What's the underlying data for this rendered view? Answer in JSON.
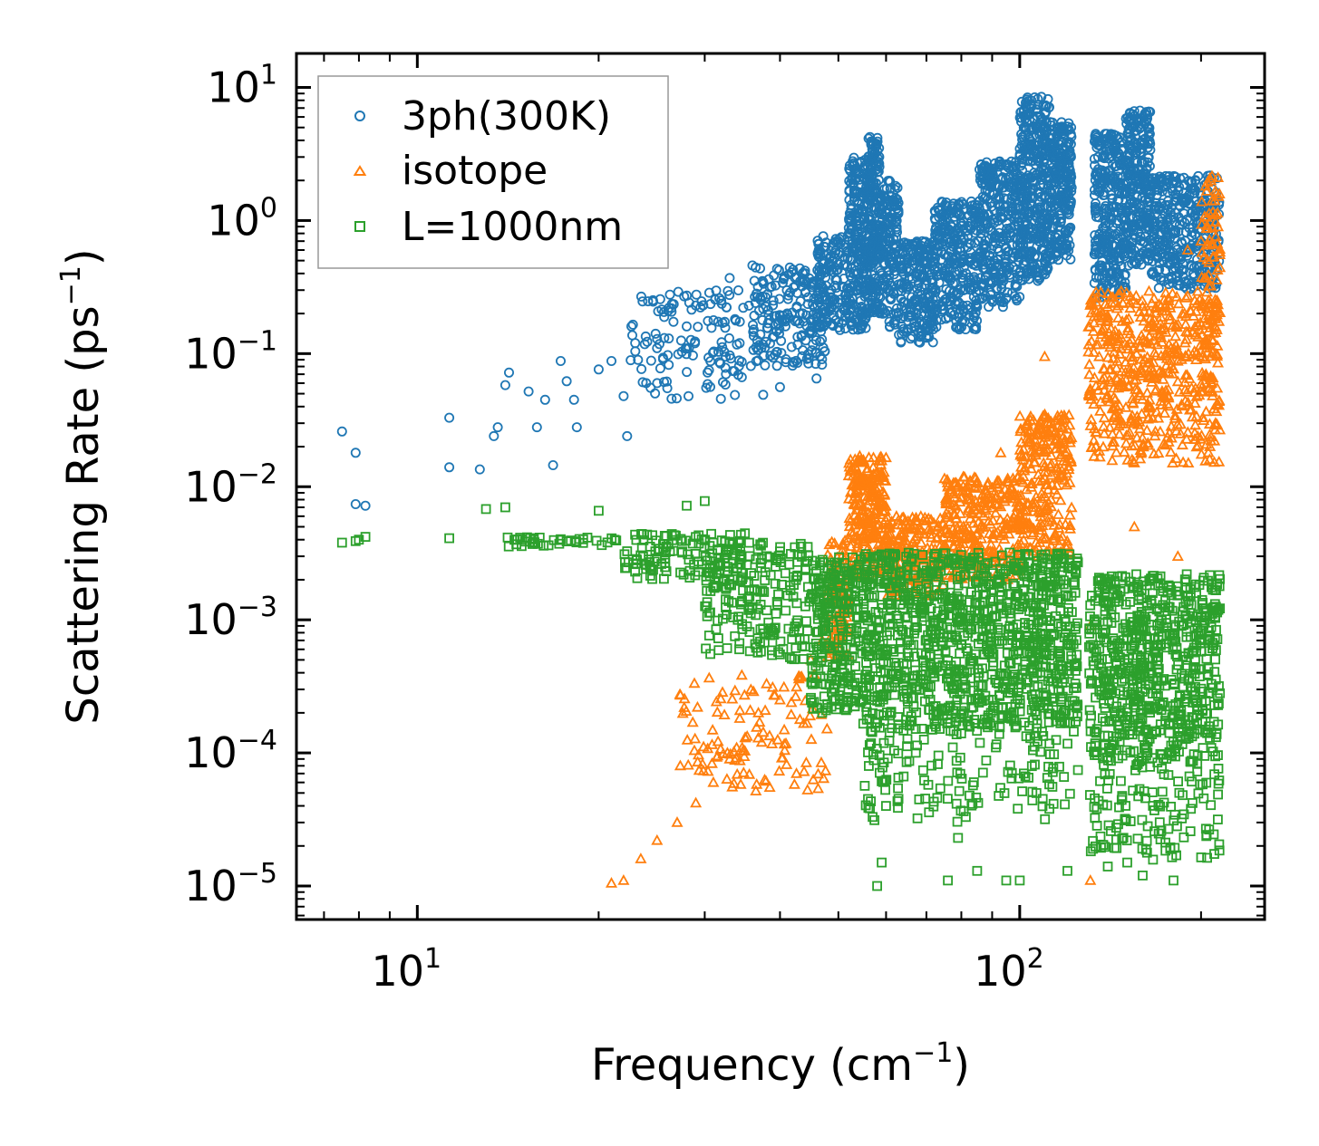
{
  "chart_data": {
    "type": "scatter",
    "xscale": "log",
    "yscale": "log",
    "xlim": [
      6.3,
      255
    ],
    "ylim": [
      5.6e-06,
      18
    ],
    "xlabel": {
      "base": "Frequency (cm",
      "sup": "−1",
      "close": ")"
    },
    "ylabel": {
      "base": "Scattering Rate (ps",
      "sup": "−1",
      "close": ")"
    },
    "x_ticks": [
      {
        "base": "10",
        "exp": "1",
        "value": 10
      },
      {
        "base": "10",
        "exp": "2",
        "value": 100
      }
    ],
    "y_ticks": [
      {
        "base": "10",
        "exp": "1",
        "value": 10
      },
      {
        "base": "10",
        "exp": "0",
        "value": 1
      },
      {
        "base": "10",
        "exp": "−1",
        "value": 0.1
      },
      {
        "base": "10",
        "exp": "−2",
        "value": 0.01
      },
      {
        "base": "10",
        "exp": "−3",
        "value": 0.001
      },
      {
        "base": "10",
        "exp": "−4",
        "value": 0.0001
      },
      {
        "base": "10",
        "exp": "−5",
        "value": 1e-05
      }
    ],
    "legend_position": "top-left",
    "series": [
      {
        "name": "3ph(300K)",
        "color": "#1f77b4",
        "marker": "circle",
        "points": [
          [
            7.5,
            0.026
          ],
          [
            7.9,
            0.018
          ],
          [
            7.9,
            0.0074
          ],
          [
            8.2,
            0.0072
          ],
          [
            11.3,
            0.033
          ],
          [
            11.3,
            0.014
          ],
          [
            12.7,
            0.0135
          ],
          [
            13.4,
            0.024
          ],
          [
            13.6,
            0.028
          ],
          [
            14.0,
            0.058
          ],
          [
            14.2,
            0.072
          ],
          [
            15.3,
            0.052
          ],
          [
            15.8,
            0.028
          ],
          [
            16.3,
            0.045
          ],
          [
            16.8,
            0.0145
          ],
          [
            17.3,
            0.088
          ],
          [
            17.7,
            0.062
          ],
          [
            18.2,
            0.045
          ],
          [
            18.4,
            0.028
          ],
          [
            20.0,
            0.076
          ],
          [
            21.0,
            0.088
          ],
          [
            22.0,
            0.048
          ],
          [
            22.3,
            0.024
          ],
          [
            23.0,
            0.12
          ],
          [
            25.0,
            0.11
          ],
          [
            26.0,
            0.055
          ],
          [
            28.0,
            0.16
          ],
          [
            29.0,
            0.23
          ],
          [
            33.0,
            0.37
          ],
          [
            36.0,
            0.46
          ],
          [
            40.0,
            0.056
          ],
          [
            46.0,
            0.065
          ]
        ],
        "bands": [
          {
            "x0": 22.5,
            "x1": 38,
            "ylo": 0.045,
            "yhi": 0.3,
            "n": 140
          },
          {
            "x0": 36,
            "x1": 48,
            "ylo": 0.08,
            "yhi": 0.45,
            "n": 200
          },
          {
            "x0": 46,
            "x1": 52,
            "ylo": 0.15,
            "yhi": 0.8,
            "n": 130
          },
          {
            "x0": 52,
            "x1": 56,
            "ylo": 0.15,
            "yhi": 3.0,
            "n": 240
          },
          {
            "x0": 56,
            "x1": 58.5,
            "ylo": 0.2,
            "yhi": 4.3,
            "n": 180
          },
          {
            "x0": 58.5,
            "x1": 63,
            "ylo": 0.15,
            "yhi": 2.0,
            "n": 160
          },
          {
            "x0": 63,
            "x1": 72,
            "ylo": 0.12,
            "yhi": 0.7,
            "n": 220
          },
          {
            "x0": 72,
            "x1": 85,
            "ylo": 0.15,
            "yhi": 1.4,
            "n": 280
          },
          {
            "x0": 85,
            "x1": 100,
            "ylo": 0.22,
            "yhi": 2.8,
            "n": 320
          },
          {
            "x0": 100,
            "x1": 112,
            "ylo": 0.35,
            "yhi": 8.5,
            "n": 360
          },
          {
            "x0": 112,
            "x1": 122,
            "ylo": 0.5,
            "yhi": 5.5,
            "n": 240
          },
          {
            "x0": 133,
            "x1": 150,
            "ylo": 0.26,
            "yhi": 4.5,
            "n": 300
          },
          {
            "x0": 150,
            "x1": 165,
            "ylo": 0.45,
            "yhi": 6.8,
            "n": 260
          },
          {
            "x0": 165,
            "x1": 215,
            "ylo": 0.3,
            "yhi": 2.2,
            "n": 360
          }
        ]
      },
      {
        "name": "isotope",
        "color": "#ff7f0e",
        "marker": "triangle",
        "points": [
          [
            21.0,
            1.05e-05
          ],
          [
            22.0,
            1.1e-05
          ],
          [
            23.5,
            1.6e-05
          ],
          [
            25.0,
            2.2e-05
          ],
          [
            27.0,
            3e-05
          ],
          [
            29.0,
            4.2e-05
          ],
          [
            31.0,
            6e-05
          ],
          [
            33.0,
            9e-05
          ],
          [
            35.0,
            0.00013
          ],
          [
            37.0,
            0.00017
          ],
          [
            40.0,
            0.00025
          ],
          [
            43.0,
            0.00036
          ],
          [
            45.0,
            0.0005
          ],
          [
            47.0,
            0.0007
          ],
          [
            110,
            0.095
          ],
          [
            93,
            0.018
          ],
          [
            131,
            1.1e-05
          ],
          [
            131,
            0.0009
          ],
          [
            155,
            0.005
          ],
          [
            183,
            0.003
          ],
          [
            190,
            0.6
          ],
          [
            200,
            0.7
          ]
        ],
        "bands": [
          {
            "x0": 27,
            "x1": 48,
            "ylo": 5e-05,
            "yhi": 0.0004,
            "n": 120
          },
          {
            "x0": 48,
            "x1": 52,
            "ylo": 0.0005,
            "yhi": 0.004,
            "n": 100
          },
          {
            "x0": 52,
            "x1": 60,
            "ylo": 0.002,
            "yhi": 0.017,
            "n": 260
          },
          {
            "x0": 60,
            "x1": 75,
            "ylo": 0.0015,
            "yhi": 0.006,
            "n": 200
          },
          {
            "x0": 75,
            "x1": 100,
            "ylo": 0.002,
            "yhi": 0.012,
            "n": 300
          },
          {
            "x0": 100,
            "x1": 122,
            "ylo": 0.003,
            "yhi": 0.035,
            "n": 260
          },
          {
            "x0": 130,
            "x1": 215,
            "ylo": 0.015,
            "yhi": 0.3,
            "n": 560
          },
          {
            "x0": 200,
            "x1": 215,
            "ylo": 0.1,
            "yhi": 2.3,
            "n": 80
          }
        ]
      },
      {
        "name": "L=1000nm",
        "color": "#2ca02c",
        "marker": "square",
        "points": [
          [
            7.5,
            0.0038
          ],
          [
            7.9,
            0.0039
          ],
          [
            8.0,
            0.004
          ],
          [
            8.2,
            0.0042
          ],
          [
            11.3,
            0.0041
          ],
          [
            13.0,
            0.0068
          ],
          [
            14.0,
            0.007
          ],
          [
            20.0,
            0.0066
          ],
          [
            28.0,
            0.0072
          ],
          [
            30.0,
            0.0078
          ],
          [
            40.0,
            0.00055
          ],
          [
            45.0,
            0.00025
          ],
          [
            47.0,
            0.0002
          ],
          [
            56.0,
            4.5e-05
          ],
          [
            57.0,
            3.3e-05
          ],
          [
            58.0,
            1e-05
          ],
          [
            59.0,
            1.5e-05
          ],
          [
            60.0,
            4e-05
          ],
          [
            76.0,
            1.1e-05
          ],
          [
            79.0,
            2.3e-05
          ],
          [
            85.0,
            1.3e-05
          ],
          [
            95.0,
            1.1e-05
          ],
          [
            100.0,
            1.1e-05
          ],
          [
            112.0,
            3.8e-05
          ],
          [
            120.0,
            1.3e-05
          ],
          [
            140.0,
            1.4e-05
          ],
          [
            160.0,
            1.2e-05
          ],
          [
            180.0,
            1.1e-05
          ]
        ],
        "bands": [
          {
            "x0": 14,
            "x1": 22,
            "ylo": 0.0035,
            "yhi": 0.0042,
            "n": 40
          },
          {
            "x0": 22,
            "x1": 35,
            "ylo": 0.002,
            "yhi": 0.0045,
            "n": 120
          },
          {
            "x0": 30,
            "x1": 45,
            "ylo": 0.0005,
            "yhi": 0.004,
            "n": 200
          },
          {
            "x0": 45,
            "x1": 55,
            "ylo": 0.0002,
            "yhi": 0.003,
            "n": 260
          },
          {
            "x0": 55,
            "x1": 125,
            "ylo": 0.00015,
            "yhi": 0.0032,
            "n": 1100
          },
          {
            "x0": 55,
            "x1": 125,
            "ylo": 3e-05,
            "yhi": 0.00015,
            "n": 140
          },
          {
            "x0": 130,
            "x1": 215,
            "ylo": 8e-05,
            "yhi": 0.0022,
            "n": 700
          },
          {
            "x0": 130,
            "x1": 215,
            "ylo": 1.5e-05,
            "yhi": 8e-05,
            "n": 120
          }
        ]
      }
    ]
  }
}
